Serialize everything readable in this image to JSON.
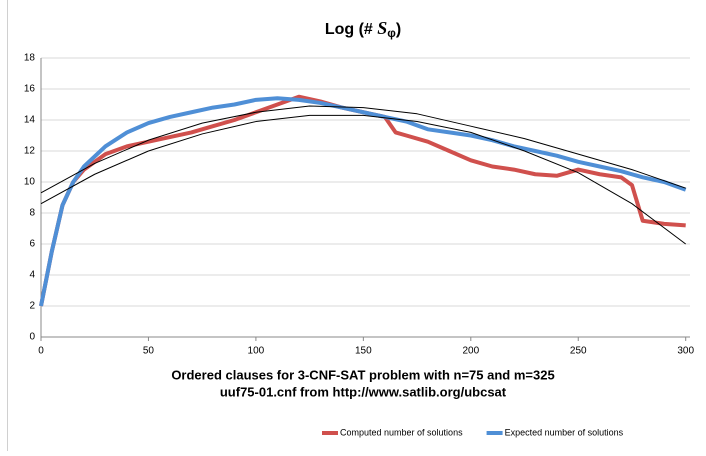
{
  "chart_data": {
    "type": "line",
    "title": [
      "Log (# ",
      "S",
      "φ",
      ")"
    ],
    "xlabel": [
      "Ordered clauses for 3-CNF-SAT problem with n=75 and m=325",
      "uuf75-01.cnf from http://www.satlib.org/ubcsat"
    ],
    "series": [
      {
        "name": "Computed number of solutions",
        "color": "#d0504d",
        "x": [
          0,
          5,
          10,
          15,
          20,
          30,
          40,
          50,
          60,
          70,
          80,
          90,
          100,
          110,
          120,
          130,
          140,
          150,
          160,
          165,
          170,
          180,
          190,
          200,
          210,
          220,
          230,
          240,
          250,
          260,
          270,
          275,
          280,
          290,
          300
        ],
        "values": [
          2,
          5.5,
          8.5,
          10,
          10.8,
          11.8,
          12.3,
          12.6,
          12.9,
          13.2,
          13.6,
          14,
          14.5,
          15,
          15.5,
          15.2,
          14.8,
          14.5,
          14.2,
          13.2,
          13,
          12.6,
          12,
          11.4,
          11,
          10.8,
          10.5,
          10.4,
          10.8,
          10.5,
          10.3,
          9.8,
          7.5,
          7.3,
          7.2
        ]
      },
      {
        "name": "Expected number of solutions",
        "color": "#4f8fd6",
        "x": [
          0,
          5,
          10,
          15,
          20,
          30,
          40,
          50,
          60,
          70,
          80,
          90,
          100,
          110,
          120,
          130,
          140,
          150,
          160,
          170,
          180,
          190,
          200,
          210,
          220,
          230,
          240,
          250,
          260,
          270,
          280,
          290,
          300
        ],
        "values": [
          2,
          5.5,
          8.5,
          10,
          11,
          12.3,
          13.2,
          13.8,
          14.2,
          14.5,
          14.8,
          15,
          15.3,
          15.4,
          15.3,
          15.1,
          14.8,
          14.5,
          14.2,
          13.9,
          13.4,
          13.2,
          13,
          12.7,
          12.3,
          12,
          11.7,
          11.3,
          11,
          10.7,
          10.3,
          10,
          9.5
        ]
      }
    ],
    "trendlines": [
      {
        "color": "#000000",
        "x": [
          0,
          25,
          50,
          75,
          100,
          125,
          150,
          175,
          200,
          225,
          250,
          275,
          300
        ],
        "values": [
          9.3,
          11.2,
          12.7,
          13.8,
          14.5,
          14.9,
          14.8,
          14.4,
          13.6,
          12.8,
          11.8,
          10.8,
          9.6
        ]
      },
      {
        "color": "#000000",
        "x": [
          0,
          25,
          50,
          75,
          100,
          125,
          150,
          175,
          200,
          225,
          250,
          275,
          300
        ],
        "values": [
          8.6,
          10.5,
          12,
          13.1,
          13.9,
          14.3,
          14.3,
          13.9,
          13.2,
          12,
          10.6,
          8.6,
          6
        ]
      }
    ],
    "xlim": [
      0,
      302
    ],
    "xticks": [
      0,
      50,
      100,
      150,
      200,
      250,
      300
    ],
    "ylim": [
      0,
      18
    ],
    "yticks": [
      0,
      2,
      4,
      6,
      8,
      10,
      12,
      14,
      16,
      18
    ],
    "grid": true,
    "legend": "bottom"
  }
}
